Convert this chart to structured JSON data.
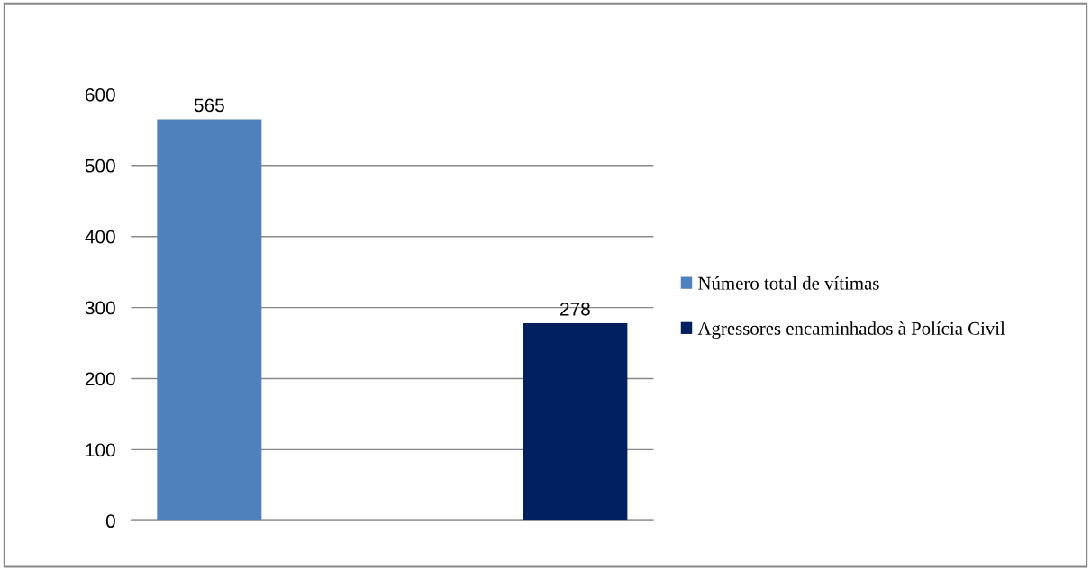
{
  "chart_data": {
    "type": "bar",
    "categories": [
      null,
      null
    ],
    "series": [
      {
        "name": "Número total de vítimas",
        "color": "#4f81bd",
        "values": [
          565,
          null
        ]
      },
      {
        "name": "Agressores encaminhados à Polícia Civil",
        "color": "#002060",
        "values": [
          null,
          278
        ]
      }
    ],
    "ylim": [
      0,
      600
    ],
    "yticks": [
      0,
      100,
      200,
      300,
      400,
      500,
      600
    ],
    "grid": "y",
    "legend": "right",
    "data_labels": true
  }
}
